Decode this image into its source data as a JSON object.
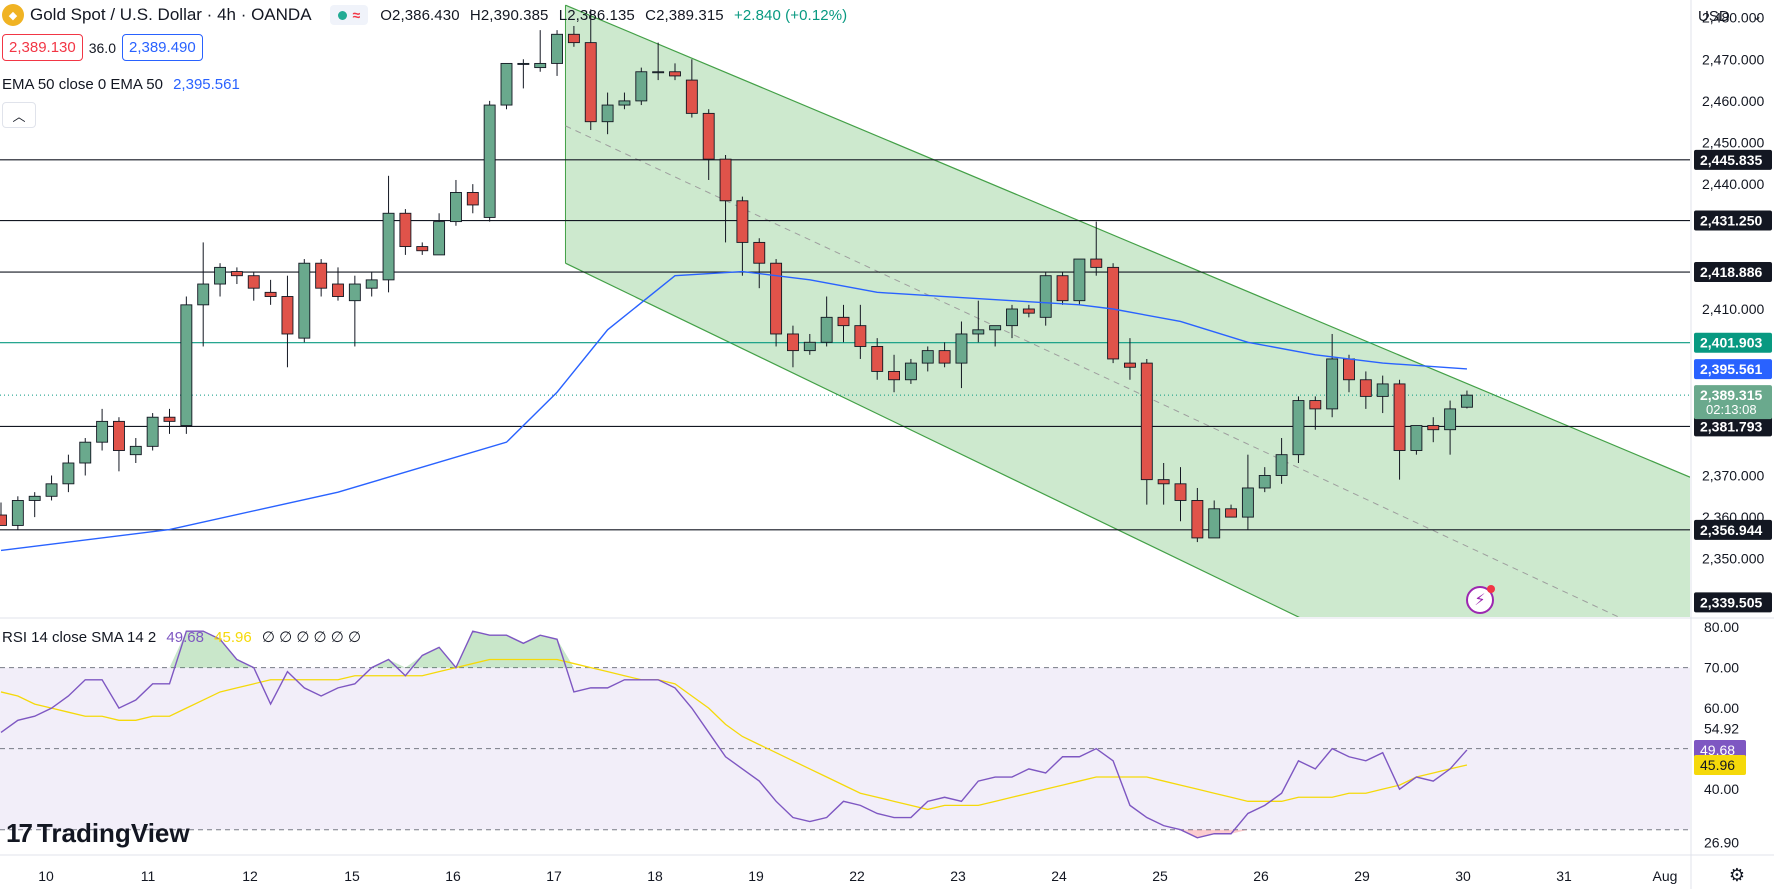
{
  "header": {
    "symbol": "Gold Spot / U.S. Dollar · 4h · OANDA",
    "open": "O2,386.430",
    "high": "H2,390.385",
    "low": "L2,386.135",
    "close": "C2,389.315",
    "change": "+2.840 (+0.12%)",
    "sell_price": "2,389.130",
    "spread": "36.0",
    "buy_price": "2,389.490",
    "collapse_icon": "chevron-up-icon",
    "colors": {
      "up": "#089981",
      "down": "#f23645",
      "buy": "#2962ff"
    }
  },
  "ema_legend": {
    "label": "EMA 50 close 0 EMA 50",
    "value": "2,395.561"
  },
  "rsi_legend": {
    "label": "RSI 14 close SMA 14 2",
    "rsi": "49.68",
    "sma": "45.96",
    "extra": "∅ ∅ ∅ ∅ ∅ ∅"
  },
  "currency": {
    "label": "USD"
  },
  "branding": {
    "name": "TradingView"
  },
  "chart_data": [
    {
      "type": "candlestick",
      "x_ticks": [
        "10",
        "11",
        "12",
        "15",
        "16",
        "17",
        "18",
        "19",
        "22",
        "23",
        "24",
        "25",
        "26",
        "29",
        "30",
        "31",
        "Aug"
      ],
      "y_ticks": [
        "2,480.000",
        "2,470.000",
        "2,460.000",
        "2,450.000",
        "2,440.000",
        "2,410.000",
        "2,370.000",
        "2,360.000",
        "2,350.000"
      ],
      "ylim": [
        2336,
        2484
      ],
      "candles": [
        [
          2360.5,
          2363.5,
          2358,
          2358
        ],
        [
          2358,
          2365,
          2357,
          2364
        ],
        [
          2364,
          2366,
          2360,
          2365
        ],
        [
          2365,
          2370,
          2364,
          2368
        ],
        [
          2368,
          2375,
          2366,
          2373
        ],
        [
          2373,
          2379,
          2370,
          2378
        ],
        [
          2378,
          2386,
          2376,
          2383
        ],
        [
          2383,
          2384,
          2371,
          2376
        ],
        [
          2375,
          2379,
          2373,
          2377
        ],
        [
          2377,
          2385,
          2376,
          2384
        ],
        [
          2384,
          2386,
          2380,
          2383
        ],
        [
          2382,
          2413,
          2380,
          2411
        ],
        [
          2411,
          2426,
          2401,
          2416
        ],
        [
          2416,
          2421,
          2413,
          2420
        ],
        [
          2419,
          2420,
          2416,
          2418
        ],
        [
          2418,
          2419,
          2412,
          2415
        ],
        [
          2414,
          2417,
          2411,
          2413
        ],
        [
          2413,
          2418,
          2396,
          2404
        ],
        [
          2403,
          2422,
          2402,
          2421
        ],
        [
          2421,
          2422,
          2413,
          2415
        ],
        [
          2416,
          2420,
          2412,
          2413
        ],
        [
          2412,
          2418,
          2401,
          2416
        ],
        [
          2415,
          2419,
          2413,
          2417
        ],
        [
          2417,
          2442,
          2414,
          2433
        ],
        [
          2433,
          2434,
          2423,
          2425
        ],
        [
          2425,
          2426,
          2423,
          2424
        ],
        [
          2423,
          2433,
          2423,
          2431
        ],
        [
          2431,
          2441,
          2430,
          2438
        ],
        [
          2438,
          2440,
          2433,
          2435
        ],
        [
          2432,
          2460,
          2431,
          2459
        ],
        [
          2459,
          2469,
          2458,
          2469
        ],
        [
          2469,
          2470,
          2463,
          2469
        ],
        [
          2468,
          2477,
          2467,
          2469
        ],
        [
          2469,
          2477,
          2466,
          2476
        ],
        [
          2476,
          2478,
          2473,
          2474
        ],
        [
          2474,
          2482,
          2453,
          2455
        ],
        [
          2455,
          2462,
          2452,
          2459
        ],
        [
          2459,
          2462,
          2458,
          2460
        ],
        [
          2460,
          2468,
          2459,
          2467
        ],
        [
          2467,
          2474,
          2465,
          2467
        ],
        [
          2467,
          2469,
          2465,
          2466
        ],
        [
          2465,
          2470,
          2456,
          2457
        ],
        [
          2457,
          2458,
          2441,
          2446
        ],
        [
          2446,
          2447,
          2426,
          2436
        ],
        [
          2436,
          2437,
          2418,
          2426
        ],
        [
          2426,
          2427,
          2415,
          2421
        ],
        [
          2421,
          2422,
          2401,
          2404
        ],
        [
          2404,
          2406,
          2396,
          2400
        ],
        [
          2400,
          2404,
          2399,
          2402
        ],
        [
          2402,
          2413,
          2401,
          2408
        ],
        [
          2408,
          2411,
          2402,
          2406
        ],
        [
          2406,
          2411,
          2398,
          2401
        ],
        [
          2401,
          2403,
          2393,
          2395
        ],
        [
          2395,
          2399,
          2390,
          2393
        ],
        [
          2393,
          2398,
          2392,
          2397
        ],
        [
          2397,
          2401,
          2395,
          2400
        ],
        [
          2400,
          2402,
          2396,
          2397
        ],
        [
          2397,
          2407,
          2391,
          2404
        ],
        [
          2404,
          2412,
          2402,
          2405
        ],
        [
          2405,
          2406,
          2401,
          2406
        ],
        [
          2406,
          2411,
          2403,
          2410
        ],
        [
          2410,
          2411,
          2408,
          2409
        ],
        [
          2408,
          2419,
          2406,
          2418
        ],
        [
          2418,
          2419,
          2411,
          2412
        ],
        [
          2412,
          2422,
          2411,
          2422
        ],
        [
          2422,
          2431,
          2418,
          2420
        ],
        [
          2420,
          2421,
          2397,
          2398
        ],
        [
          2397,
          2403,
          2393,
          2396
        ],
        [
          2397,
          2398,
          2363,
          2369
        ],
        [
          2369,
          2373,
          2363,
          2368
        ],
        [
          2368,
          2372,
          2359,
          2364
        ],
        [
          2364,
          2367,
          2354,
          2355
        ],
        [
          2355,
          2364,
          2355,
          2362
        ],
        [
          2362,
          2363,
          2360,
          2360
        ],
        [
          2360,
          2375,
          2357,
          2367
        ],
        [
          2367,
          2372,
          2366,
          2370
        ],
        [
          2370,
          2379,
          2368,
          2375
        ],
        [
          2375,
          2389,
          2373,
          2388
        ],
        [
          2388,
          2389,
          2381,
          2386
        ],
        [
          2386,
          2404,
          2384,
          2398
        ],
        [
          2398,
          2399,
          2390,
          2393
        ],
        [
          2393,
          2395,
          2386,
          2389
        ],
        [
          2389,
          2394,
          2385,
          2392
        ],
        [
          2392,
          2393,
          2369,
          2376
        ],
        [
          2376,
          2382,
          2375,
          2382
        ],
        [
          2382,
          2384,
          2378,
          2381
        ],
        [
          2381,
          2388,
          2375,
          2386
        ],
        [
          2386.4,
          2390.4,
          2386.1,
          2389.3
        ]
      ],
      "ema50": [
        [
          0,
          2352
        ],
        [
          10,
          2357
        ],
        [
          20,
          2366
        ],
        [
          30,
          2378
        ],
        [
          33,
          2390
        ],
        [
          36,
          2405
        ],
        [
          40,
          2418
        ],
        [
          44,
          2419
        ],
        [
          48,
          2417
        ],
        [
          52,
          2414
        ],
        [
          56,
          2413
        ],
        [
          60,
          2412
        ],
        [
          64,
          2411
        ],
        [
          66,
          2410
        ],
        [
          70,
          2407
        ],
        [
          74,
          2402
        ],
        [
          78,
          2399
        ],
        [
          82,
          2397
        ],
        [
          87,
          2395.6
        ]
      ],
      "channel": {
        "upper": [
          [
            33.5,
            2483
          ],
          [
            100,
            2370
          ]
        ],
        "lower": [
          [
            33.5,
            2421
          ],
          [
            77,
            2336
          ]
        ],
        "mid": [
          [
            33.5,
            2454
          ],
          [
            96,
            2336
          ]
        ]
      },
      "horizontal_levels": [
        {
          "price": 2445.835,
          "label": "2,445.835",
          "color": "#131722"
        },
        {
          "price": 2431.25,
          "label": "2,431.250",
          "color": "#131722"
        },
        {
          "price": 2418.886,
          "label": "2,418.886",
          "color": "#131722"
        },
        {
          "price": 2401.903,
          "label": "2,401.903",
          "color": "#089981"
        },
        {
          "price": 2381.793,
          "label": "2,381.793",
          "color": "#131722"
        },
        {
          "price": 2356.944,
          "label": "2,356.944",
          "color": "#131722"
        }
      ],
      "price_tags": [
        {
          "price": 2395.561,
          "label": "2,395.561",
          "color": "#2962ff"
        },
        {
          "price": 2389.315,
          "label": "2,389.315",
          "sublabel": "02:13:08",
          "color": "#6aa98d"
        },
        {
          "price": 2339.505,
          "label": "2,339.505",
          "color": "#131722"
        }
      ]
    },
    {
      "type": "line",
      "name": "RSI 14",
      "ylim": [
        24,
        82
      ],
      "y_ticks": [
        "80.00",
        "70.00",
        "60.00",
        "54.92",
        "40.00",
        "26.90"
      ],
      "bands": [
        70,
        50,
        30
      ],
      "rsi": [
        54,
        57,
        58,
        60,
        63,
        67,
        67,
        60,
        62,
        66,
        66,
        79,
        79,
        77,
        72,
        70,
        61,
        69,
        65,
        63,
        65,
        66,
        70,
        72,
        68,
        73,
        75,
        70,
        79,
        78,
        78,
        76,
        78,
        77,
        64,
        65,
        65,
        67,
        67,
        67,
        65,
        60,
        54,
        48,
        45,
        42,
        37,
        33,
        32,
        33,
        37,
        36,
        34,
        33,
        33,
        37,
        38,
        37,
        42,
        43,
        43,
        45,
        44,
        48,
        48,
        50,
        47,
        36,
        33,
        31,
        30,
        28,
        29,
        29,
        34,
        36,
        39,
        47,
        45,
        50,
        48,
        47,
        49,
        40,
        43,
        42,
        45,
        49.68
      ],
      "sma": [
        64,
        63,
        61,
        60,
        59,
        58,
        58,
        57,
        57,
        58,
        58,
        60,
        62,
        64,
        65,
        66,
        67,
        67,
        67,
        67,
        67,
        68,
        68,
        68,
        68,
        68,
        69,
        70,
        71,
        72,
        72,
        72,
        72,
        72,
        71,
        70,
        69,
        68,
        67,
        67,
        66,
        63,
        60,
        56,
        53,
        51,
        49,
        47,
        45,
        43,
        41,
        39,
        38,
        37,
        36,
        35,
        36,
        36,
        36,
        37,
        38,
        39,
        40,
        41,
        42,
        43,
        43,
        43,
        43,
        42,
        41,
        40,
        39,
        38,
        37,
        37,
        37,
        38,
        38,
        38,
        39,
        39,
        40,
        41,
        43,
        44,
        45,
        45.96
      ],
      "price_tags": [
        {
          "value": 49.68,
          "label": "49.68",
          "color": "#7e57c2"
        },
        {
          "value": 45.96,
          "label": "45.96",
          "color": "#f5d90a"
        }
      ]
    }
  ]
}
